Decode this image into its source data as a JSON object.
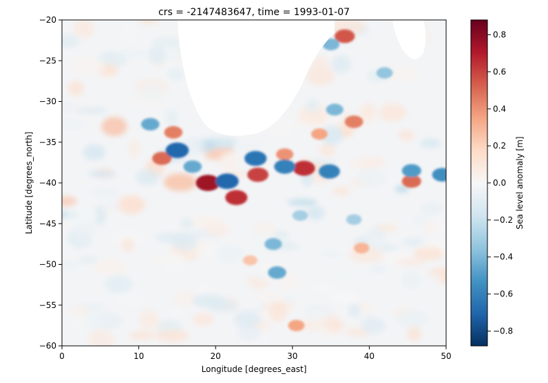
{
  "chart_data": {
    "type": "heatmap",
    "title": "crs = -2147483647, time = 1993-01-07",
    "xlabel": "Longitude [degrees_east]",
    "ylabel": "Latitude [degrees_north]",
    "xlim": [
      0,
      50
    ],
    "ylim": [
      -60,
      -20
    ],
    "xticks": [
      0,
      10,
      20,
      30,
      40,
      50
    ],
    "xtick_labels": [
      "0",
      "10",
      "20",
      "30",
      "40",
      "50"
    ],
    "yticks": [
      -20,
      -25,
      -30,
      -35,
      -40,
      -45,
      -50,
      -55,
      -60
    ],
    "ytick_labels": [
      "−20",
      "−25",
      "−30",
      "−35",
      "−40",
      "−45",
      "−50",
      "−55",
      "−60"
    ],
    "colorbar": {
      "label": "Sea level anomaly [m]",
      "colormap": "RdBu_r",
      "vmin": -0.88,
      "vmax": 0.88,
      "ticks": [
        0.8,
        0.6,
        0.4,
        0.2,
        0.0,
        -0.2,
        -0.4,
        -0.6,
        -0.8
      ],
      "tick_labels": [
        "0.8",
        "0.6",
        "0.4",
        "0.2",
        "0.0",
        "−0.2",
        "−0.4",
        "−0.6",
        "−0.8"
      ]
    },
    "land_mask_color": "#ffffff",
    "features": [
      {
        "lon": 19,
        "lat": -40.0,
        "value": 0.75
      },
      {
        "lon": 22.7,
        "lat": -41.8,
        "value": 0.65
      },
      {
        "lon": 25.5,
        "lat": -39.0,
        "value": 0.6
      },
      {
        "lon": 31.5,
        "lat": -38.2,
        "value": 0.65
      },
      {
        "lon": 45.5,
        "lat": -39.8,
        "value": 0.5
      },
      {
        "lon": 36.8,
        "lat": -22.0,
        "value": 0.55
      },
      {
        "lon": 38.0,
        "lat": -32.5,
        "value": 0.45
      },
      {
        "lon": 14.5,
        "lat": -33.8,
        "value": 0.45
      },
      {
        "lon": 13.0,
        "lat": -37.0,
        "value": 0.5
      },
      {
        "lon": 29.0,
        "lat": -36.5,
        "value": 0.4
      },
      {
        "lon": 33.5,
        "lat": -34.0,
        "value": 0.35
      },
      {
        "lon": 30.5,
        "lat": -57.5,
        "value": 0.35
      },
      {
        "lon": 39.0,
        "lat": -48.0,
        "value": 0.3
      },
      {
        "lon": 24.5,
        "lat": -49.5,
        "value": 0.25
      },
      {
        "lon": 15.0,
        "lat": -36.0,
        "value": -0.7
      },
      {
        "lon": 21.5,
        "lat": -39.8,
        "value": -0.7
      },
      {
        "lon": 25.2,
        "lat": -37.0,
        "value": -0.65
      },
      {
        "lon": 29.0,
        "lat": -38.0,
        "value": -0.6
      },
      {
        "lon": 34.8,
        "lat": -38.6,
        "value": -0.6
      },
      {
        "lon": 45.5,
        "lat": -38.5,
        "value": -0.5
      },
      {
        "lon": 49.5,
        "lat": -39.0,
        "value": -0.55
      },
      {
        "lon": 11.5,
        "lat": -32.8,
        "value": -0.45
      },
      {
        "lon": 17.0,
        "lat": -38.0,
        "value": -0.45
      },
      {
        "lon": 28.0,
        "lat": -51.0,
        "value": -0.45
      },
      {
        "lon": 27.5,
        "lat": -47.5,
        "value": -0.4
      },
      {
        "lon": 35.5,
        "lat": -31.0,
        "value": -0.4
      },
      {
        "lon": 35.0,
        "lat": -23.0,
        "value": -0.4
      },
      {
        "lon": 42.0,
        "lat": -26.5,
        "value": -0.35
      },
      {
        "lon": 38.0,
        "lat": -44.5,
        "value": -0.3
      },
      {
        "lon": 31.0,
        "lat": -44.0,
        "value": -0.3
      }
    ]
  }
}
